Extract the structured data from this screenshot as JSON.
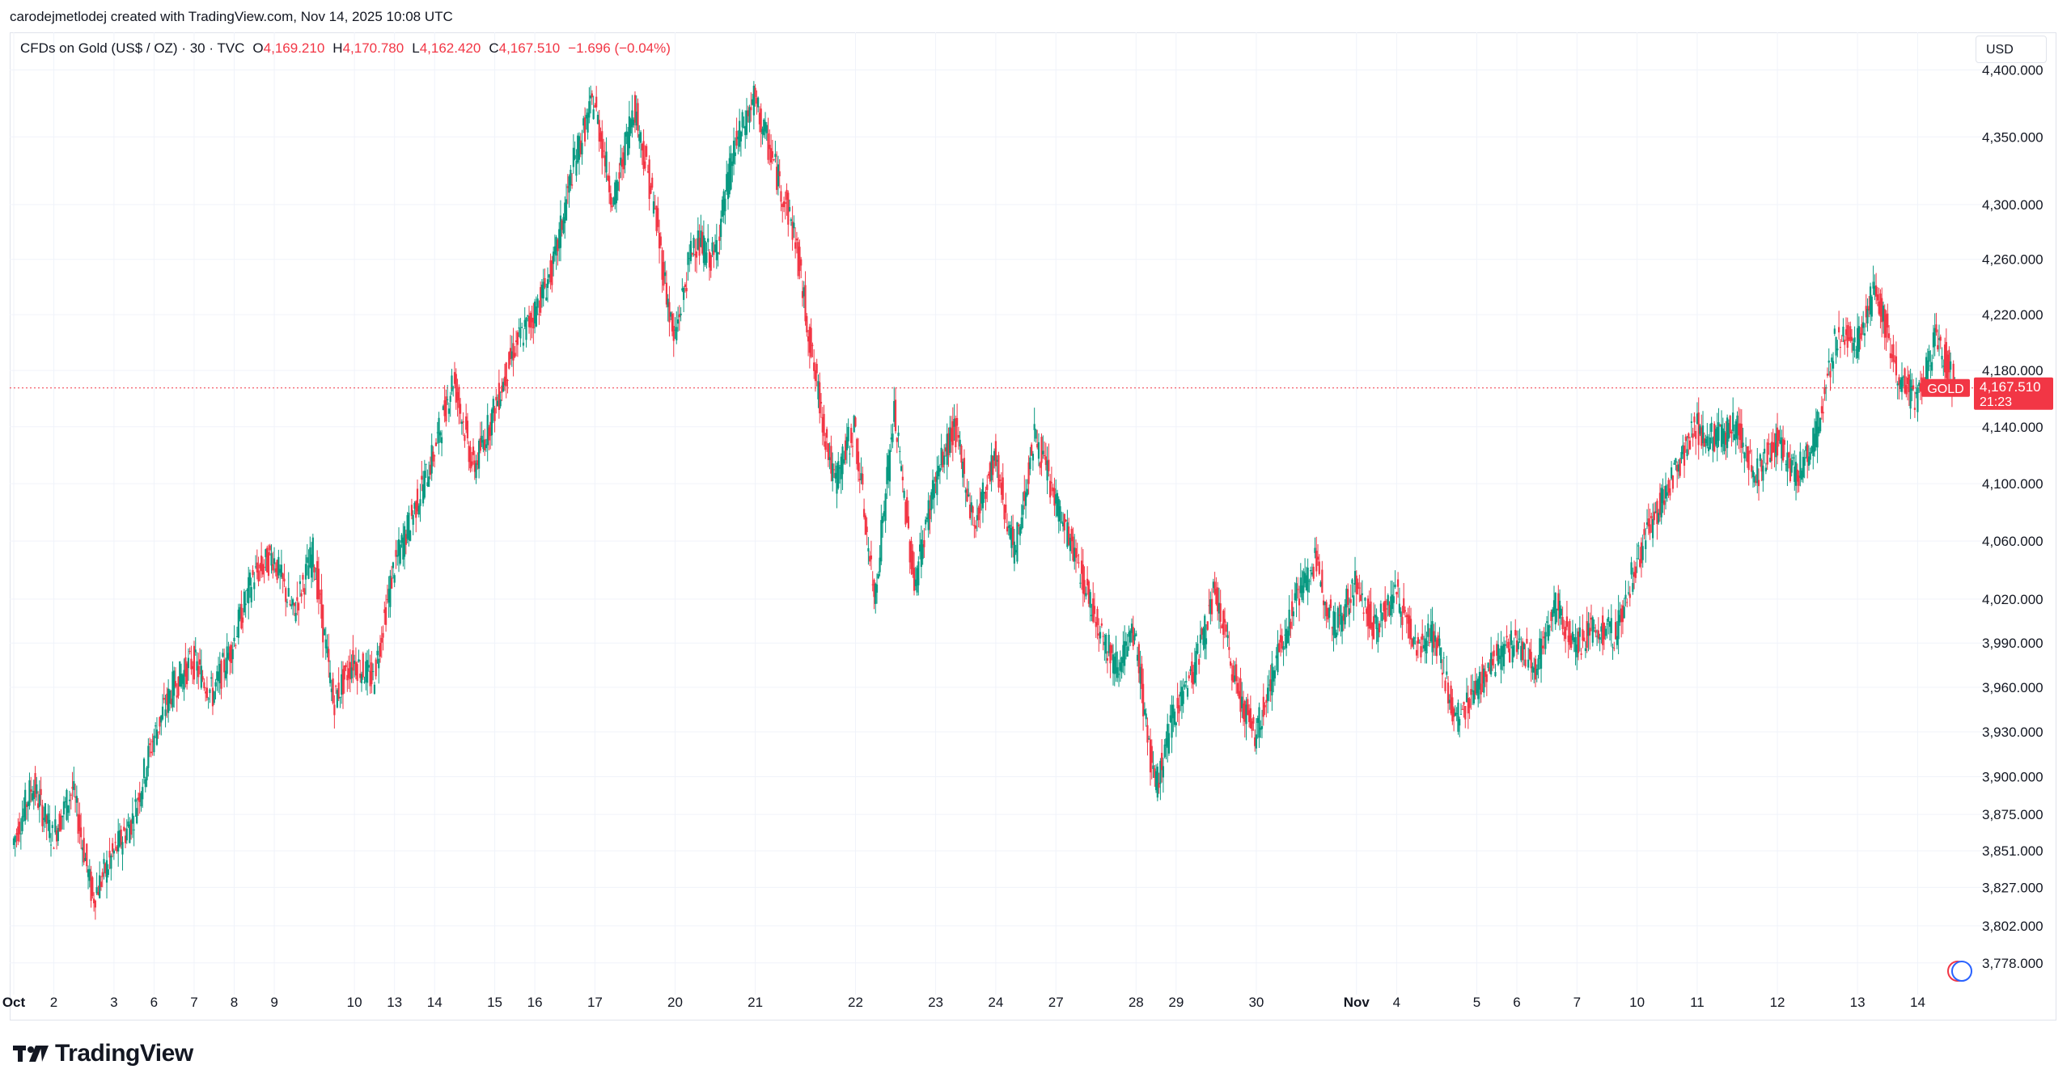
{
  "header": {
    "caption": "carodejmetlodej created with TradingView.com, Nov 14, 2025 10:08 UTC"
  },
  "legend": {
    "symbol": "CFDs on Gold (US$ / OZ) · 30 · TVC",
    "open_label": "O",
    "open_value": "4,169.210",
    "high_label": "H",
    "high_value": "4,170.780",
    "low_label": "L",
    "low_value": "4,162.420",
    "close_label": "C",
    "close_value": "4,167.510",
    "change": "−1.696 (−0.04%)"
  },
  "price_axis": {
    "currency": "USD",
    "last_price_label": "4,167.510",
    "countdown": "21:23",
    "ticker_tag": "GOLD"
  },
  "branding": {
    "name": "TradingView"
  },
  "colors": {
    "up": "#089981",
    "down": "#f23645",
    "grid": "#f0f3fa",
    "axis_text": "#131722"
  },
  "chart_data": {
    "type": "candlestick",
    "timeframe": "30",
    "y_ticks": [
      3778,
      3802,
      3827,
      3851,
      3875,
      3900,
      3930,
      3960,
      3990,
      4020,
      4060,
      4100,
      4140,
      4180,
      4220,
      4260,
      4300,
      4350,
      4400
    ],
    "y_tick_labels": [
      "3,778.000",
      "3,802.000",
      "3,827.000",
      "3,851.000",
      "3,875.000",
      "3,900.000",
      "3,930.000",
      "3,960.000",
      "3,990.000",
      "4,020.000",
      "4,060.000",
      "4,100.000",
      "4,140.000",
      "4,180.000",
      "4,220.000",
      "4,260.000",
      "4,300.000",
      "4,350.000",
      "4,400.000"
    ],
    "ylim": [
      3768,
      4410
    ],
    "y_scale": "log",
    "x_labels": [
      "Oct",
      "2",
      "3",
      "6",
      "7",
      "8",
      "9",
      "10",
      "13",
      "14",
      "15",
      "16",
      "17",
      "20",
      "21",
      "22",
      "23",
      "24",
      "27",
      "28",
      "29",
      "30",
      "Nov",
      "4",
      "5",
      "6",
      "7",
      "10",
      "11",
      "12",
      "13",
      "14"
    ],
    "x_bold": [
      "Oct",
      "Nov"
    ],
    "last_price": 4167.51,
    "path": [
      {
        "label": "Oct",
        "price": 3855
      },
      {
        "label": "",
        "price": 3895
      },
      {
        "label": "2",
        "price": 3860
      },
      {
        "label": "",
        "price": 3892
      },
      {
        "label": "",
        "price": 3820
      },
      {
        "label": "3",
        "price": 3848
      },
      {
        "label": "",
        "price": 3872
      },
      {
        "label": "6",
        "price": 3925
      },
      {
        "label": "",
        "price": 3960
      },
      {
        "label": "7",
        "price": 3978
      },
      {
        "label": "",
        "price": 3955
      },
      {
        "label": "8",
        "price": 3990
      },
      {
        "label": "",
        "price": 4035
      },
      {
        "label": "9",
        "price": 4050
      },
      {
        "label": "",
        "price": 4010
      },
      {
        "label": "",
        "price": 4052
      },
      {
        "label": "",
        "price": 3950
      },
      {
        "label": "10",
        "price": 3978
      },
      {
        "label": "",
        "price": 3965
      },
      {
        "label": "13",
        "price": 4040
      },
      {
        "label": "",
        "price": 4080
      },
      {
        "label": "14",
        "price": 4120
      },
      {
        "label": "",
        "price": 4175
      },
      {
        "label": "",
        "price": 4110
      },
      {
        "label": "15",
        "price": 4150
      },
      {
        "label": "",
        "price": 4195
      },
      {
        "label": "16",
        "price": 4220
      },
      {
        "label": "",
        "price": 4255
      },
      {
        "label": "",
        "price": 4330
      },
      {
        "label": "17",
        "price": 4378
      },
      {
        "label": "",
        "price": 4300
      },
      {
        "label": "",
        "price": 4375
      },
      {
        "label": "",
        "price": 4300
      },
      {
        "label": "20",
        "price": 4200
      },
      {
        "label": "",
        "price": 4275
      },
      {
        "label": "",
        "price": 4260
      },
      {
        "label": "",
        "price": 4340
      },
      {
        "label": "21",
        "price": 4378
      },
      {
        "label": "",
        "price": 4330
      },
      {
        "label": "",
        "price": 4280
      },
      {
        "label": "",
        "price": 4180
      },
      {
        "label": "",
        "price": 4100
      },
      {
        "label": "22",
        "price": 4140
      },
      {
        "label": "",
        "price": 4020
      },
      {
        "label": "",
        "price": 4150
      },
      {
        "label": "",
        "price": 4030
      },
      {
        "label": "23",
        "price": 4100
      },
      {
        "label": "",
        "price": 4140
      },
      {
        "label": "",
        "price": 4070
      },
      {
        "label": "24",
        "price": 4120
      },
      {
        "label": "",
        "price": 4050
      },
      {
        "label": "",
        "price": 4135
      },
      {
        "label": "27",
        "price": 4090
      },
      {
        "label": "",
        "price": 4050
      },
      {
        "label": "",
        "price": 4010
      },
      {
        "label": "",
        "price": 3975
      },
      {
        "label": "28",
        "price": 3995
      },
      {
        "label": "",
        "price": 3890
      },
      {
        "label": "29",
        "price": 3945
      },
      {
        "label": "",
        "price": 3975
      },
      {
        "label": "",
        "price": 4025
      },
      {
        "label": "",
        "price": 3965
      },
      {
        "label": "30",
        "price": 3925
      },
      {
        "label": "",
        "price": 3975
      },
      {
        "label": "",
        "price": 4020
      },
      {
        "label": "",
        "price": 4045
      },
      {
        "label": "",
        "price": 4000
      },
      {
        "label": "Nov",
        "price": 4030
      },
      {
        "label": "",
        "price": 4000
      },
      {
        "label": "4",
        "price": 4025
      },
      {
        "label": "",
        "price": 3990
      },
      {
        "label": "",
        "price": 3995
      },
      {
        "label": "",
        "price": 3935
      },
      {
        "label": "5",
        "price": 3960
      },
      {
        "label": "",
        "price": 3980
      },
      {
        "label": "6",
        "price": 3990
      },
      {
        "label": "",
        "price": 3975
      },
      {
        "label": "",
        "price": 4015
      },
      {
        "label": "7",
        "price": 3990
      },
      {
        "label": "",
        "price": 4000
      },
      {
        "label": "",
        "price": 3995
      },
      {
        "label": "10",
        "price": 4045
      },
      {
        "label": "",
        "price": 4080
      },
      {
        "label": "",
        "price": 4110
      },
      {
        "label": "11",
        "price": 4140
      },
      {
        "label": "",
        "price": 4130
      },
      {
        "label": "",
        "price": 4142
      },
      {
        "label": "",
        "price": 4105
      },
      {
        "label": "12",
        "price": 4130
      },
      {
        "label": "",
        "price": 4105
      },
      {
        "label": "",
        "price": 4135
      },
      {
        "label": "",
        "price": 4205
      },
      {
        "label": "13",
        "price": 4200
      },
      {
        "label": "",
        "price": 4240
      },
      {
        "label": "",
        "price": 4180
      },
      {
        "label": "14",
        "price": 4155
      },
      {
        "label": "",
        "price": 4205
      },
      {
        "label": "",
        "price": 4167.51
      }
    ]
  }
}
